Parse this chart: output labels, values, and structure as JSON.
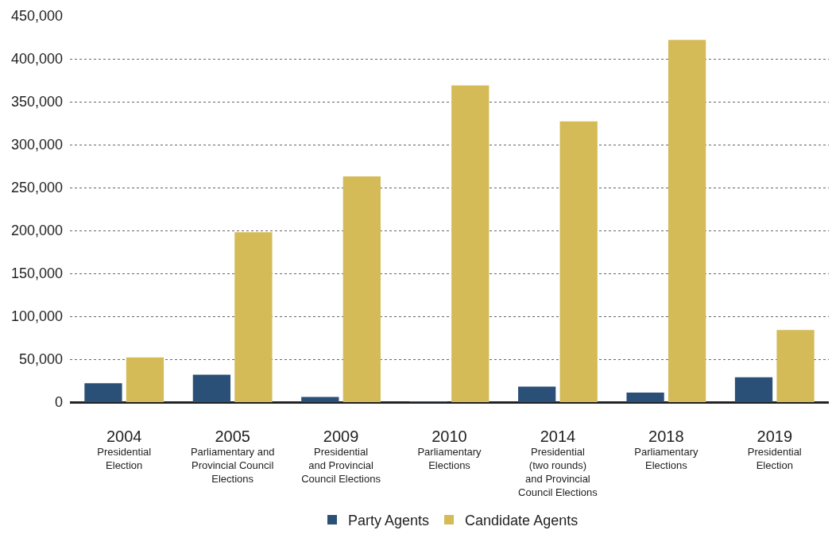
{
  "chart_data": {
    "type": "bar",
    "categories": [
      "2004\nPresidential\nElection",
      "2005\nParliamentary and\nProvincial Council\nElections",
      "2009\nPresidential\nand Provincial\nCouncil Elections",
      "2010\nParliamentary\nElections",
      "2014\nPresidential\n(two rounds)\nand Provincial\nCouncil Elections",
      "2018\nParliamentary\nElections",
      "2019\nPresidential\nElection"
    ],
    "series": [
      {
        "name": "Party Agents",
        "color": "#2a5078",
        "values": [
          22000,
          32000,
          6000,
          1000,
          18000,
          11000,
          29000
        ]
      },
      {
        "name": "Candidate Agents",
        "color": "#d4bb57",
        "values": [
          52000,
          198000,
          263000,
          369000,
          327000,
          422000,
          84000
        ]
      }
    ],
    "ylim": [
      0,
      450000
    ],
    "yticks": [
      0,
      {
        "value": 50000,
        "label": "50,000"
      },
      {
        "value": 100000,
        "label": "100,000"
      },
      {
        "value": 150000,
        "label": "150,000"
      },
      {
        "value": 200000,
        "label": "200,000"
      },
      {
        "value": 250000,
        "label": "250,000"
      },
      {
        "value": 300000,
        "label": "300,000"
      },
      {
        "value": 350000,
        "label": "350,000"
      },
      {
        "value": 400000,
        "label": "400,000"
      },
      {
        "value": 450000,
        "label": "450,000"
      }
    ],
    "grid": "y",
    "legend": "bottom"
  }
}
